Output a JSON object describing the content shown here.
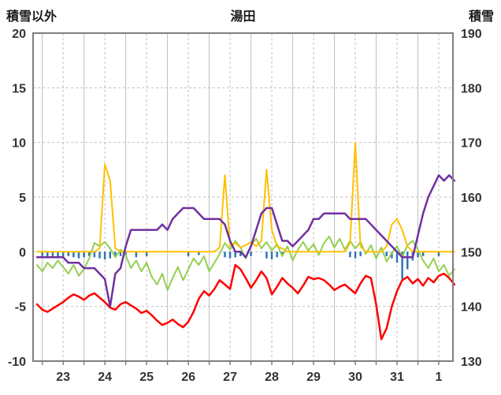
{
  "chart_data": {
    "type": "line",
    "title": "湯田",
    "background": "#ffffff",
    "grid_color": "#bfbfbf",
    "axis_color": "#7f7f7f",
    "tick_text_color": "#333333",
    "x_domain": [
      22.28,
      32.34
    ],
    "x_axis": {
      "tick_labels": [
        "23",
        "24",
        "25",
        "26",
        "27",
        "28",
        "29",
        "30",
        "31",
        "1"
      ],
      "tick_days": [
        23,
        24,
        25,
        26,
        27,
        28,
        29,
        30,
        31,
        32
      ]
    },
    "left_axis": {
      "title": "積雪以外",
      "range": [
        -10,
        20
      ],
      "ticks": [
        -10,
        -5,
        0,
        5,
        10,
        15,
        20
      ]
    },
    "right_axis": {
      "title": "積雪",
      "range": [
        130,
        190
      ],
      "ticks": [
        130,
        140,
        150,
        160,
        170,
        180,
        190
      ]
    },
    "series_x": {
      "start": 22.375,
      "step": 0.125
    },
    "series": [
      {
        "name": "green-line",
        "axis": "left",
        "color": "#92D050",
        "width": 2,
        "values": [
          -1.2,
          -1.8,
          -1.0,
          -1.5,
          -0.8,
          -1.4,
          -2.0,
          -1.2,
          -2.2,
          -1.6,
          -0.6,
          0.8,
          0.5,
          0.9,
          0.3,
          -0.5,
          0.2,
          -0.3,
          -1.5,
          -0.8,
          -1.8,
          -1.0,
          -2.3,
          -3.0,
          -2.0,
          -3.5,
          -2.4,
          -1.4,
          -2.6,
          -1.6,
          -0.6,
          -1.2,
          -0.4,
          -1.8,
          -1.0,
          -0.2,
          0.8,
          0.2,
          1.0,
          0.4,
          -0.6,
          0.6,
          1.2,
          0.3,
          0.9,
          0.1,
          0.7,
          -0.4,
          0.5,
          -0.8,
          0.2,
          0.9,
          0.1,
          0.7,
          -0.3,
          0.8,
          1.4,
          0.4,
          1.2,
          0.2,
          1.0,
          0.3,
          0.9,
          -0.2,
          0.6,
          -0.6,
          0.4,
          -0.9,
          -0.1,
          0.5,
          -0.5,
          0.6,
          1.0,
          0.2,
          -0.8,
          -1.5,
          -0.6,
          -1.8,
          -1.2,
          -2.2,
          -1.6
        ]
      },
      {
        "name": "orange-line",
        "axis": "left",
        "color": "#FFC000",
        "width": 2,
        "values": [
          0,
          0,
          0,
          0,
          0,
          0,
          0,
          0,
          0,
          0,
          0,
          0,
          0.3,
          8,
          6.5,
          0.3,
          0,
          0,
          0,
          0,
          0,
          0,
          0,
          0,
          0,
          0,
          0,
          0,
          0,
          0,
          0,
          0,
          0,
          0,
          0,
          0.4,
          7,
          0.5,
          0.8,
          0.4,
          0.6,
          0.9,
          0.5,
          1.0,
          7.5,
          2.0,
          0.5,
          0.3,
          0,
          0,
          0,
          0,
          0,
          0,
          0,
          0,
          0,
          0,
          0,
          0,
          0.8,
          10,
          0.5,
          0,
          0,
          0,
          0,
          0.5,
          2.5,
          3.0,
          2.0,
          0.5,
          0,
          0,
          0,
          0,
          0,
          0,
          0,
          0,
          0
        ]
      },
      {
        "name": "red-line",
        "axis": "left",
        "color": "#FF0000",
        "width": 2.5,
        "values": [
          -4.8,
          -5.3,
          -5.5,
          -5.2,
          -4.9,
          -4.6,
          -4.2,
          -3.9,
          -4.1,
          -4.4,
          -4.0,
          -3.8,
          -4.2,
          -4.6,
          -5.1,
          -5.3,
          -4.8,
          -4.6,
          -4.9,
          -5.2,
          -5.6,
          -5.4,
          -5.8,
          -6.3,
          -6.7,
          -6.5,
          -6.2,
          -6.6,
          -6.9,
          -6.4,
          -5.5,
          -4.3,
          -3.6,
          -4.0,
          -3.4,
          -2.6,
          -3.0,
          -3.4,
          -1.2,
          -1.6,
          -2.4,
          -3.3,
          -2.6,
          -1.8,
          -2.4,
          -3.9,
          -3.2,
          -2.4,
          -2.9,
          -3.3,
          -3.8,
          -3.1,
          -2.3,
          -2.5,
          -2.4,
          -2.6,
          -3.0,
          -3.5,
          -3.2,
          -3.0,
          -3.4,
          -3.8,
          -2.9,
          -2.2,
          -2.4,
          -4.8,
          -8.0,
          -7.0,
          -5.0,
          -3.6,
          -2.6,
          -2.3,
          -2.9,
          -2.5,
          -3.1,
          -2.4,
          -2.8,
          -2.2,
          -2.0,
          -2.4,
          -3.0
        ]
      },
      {
        "name": "purple-line",
        "axis": "right",
        "color": "#7030A0",
        "width": 2.5,
        "values": [
          149,
          149,
          149,
          149,
          149,
          149,
          148,
          148,
          148,
          147,
          147,
          147,
          146,
          145,
          140,
          146,
          147,
          151,
          154,
          154,
          154,
          154,
          154,
          154,
          155,
          154,
          156,
          157,
          158,
          158,
          158,
          157,
          156,
          156,
          156,
          156,
          155,
          152,
          150,
          150,
          149,
          151,
          154,
          157,
          158,
          158,
          155,
          152,
          152,
          151,
          152,
          153,
          154,
          156,
          156,
          157,
          157,
          157,
          157,
          157,
          156,
          156,
          156,
          156,
          155,
          154,
          153,
          152,
          151,
          150,
          149,
          149,
          149,
          153,
          157,
          160,
          162,
          164,
          163,
          164,
          163
        ]
      }
    ],
    "bars": {
      "name": "blue-bars",
      "axis": "left",
      "color": "#2E75B6",
      "width": 2.5,
      "points": [
        [
          22.5,
          -0.4
        ],
        [
          22.625,
          -0.5
        ],
        [
          22.75,
          -0.4
        ],
        [
          22.875,
          -0.6
        ],
        [
          23.0,
          -0.5
        ],
        [
          23.125,
          -0.4
        ],
        [
          23.25,
          -0.5
        ],
        [
          23.375,
          -0.6
        ],
        [
          23.5,
          -0.5
        ],
        [
          23.625,
          -0.4
        ],
        [
          23.75,
          -0.5
        ],
        [
          23.875,
          -0.6
        ],
        [
          24.0,
          -0.7
        ],
        [
          24.125,
          -0.6
        ],
        [
          24.25,
          -0.5
        ],
        [
          24.375,
          -0.4
        ],
        [
          24.5,
          -0.4
        ],
        [
          24.75,
          -0.5
        ],
        [
          25.0,
          -0.4
        ],
        [
          26.0,
          -0.4
        ],
        [
          26.25,
          -0.3
        ],
        [
          26.875,
          -0.5
        ],
        [
          27.0,
          -0.6
        ],
        [
          27.125,
          -0.5
        ],
        [
          27.25,
          -0.4
        ],
        [
          27.5,
          -0.4
        ],
        [
          27.875,
          -0.6
        ],
        [
          28.0,
          -0.7
        ],
        [
          28.125,
          -0.5
        ],
        [
          28.25,
          -0.4
        ],
        [
          29.875,
          -0.5
        ],
        [
          30.0,
          -0.6
        ],
        [
          30.125,
          -0.4
        ],
        [
          30.75,
          -0.4
        ],
        [
          30.875,
          -0.6
        ],
        [
          31.0,
          -1.0
        ],
        [
          31.125,
          -2.5
        ],
        [
          31.25,
          -1.6
        ],
        [
          31.375,
          -0.8
        ],
        [
          31.5,
          -0.5
        ],
        [
          31.625,
          -0.4
        ],
        [
          32.0,
          -0.4
        ]
      ]
    }
  }
}
